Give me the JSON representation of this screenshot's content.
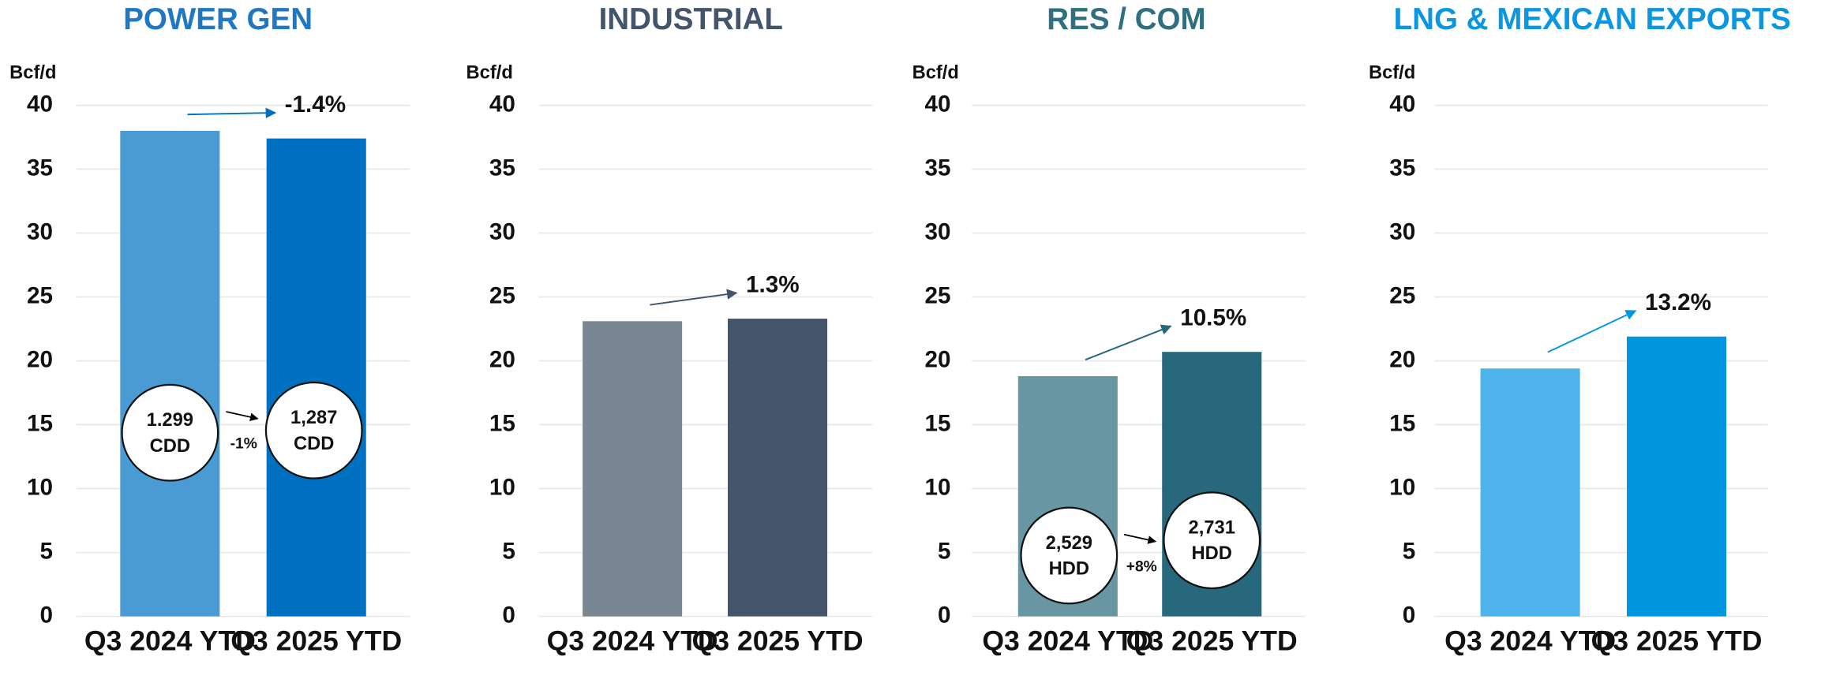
{
  "chart_data": [
    {
      "type": "bar",
      "title": "POWER GEN",
      "y_label": "Bcf/d",
      "categories": [
        "Q3 2024 YTD",
        "Q3 2025 YTD"
      ],
      "values": [
        38.0,
        37.4
      ],
      "colors": [
        "#4a9bd4",
        "#0070c0"
      ],
      "title_color": "#1f78c1",
      "ylim": [
        0,
        40
      ],
      "yticks": [
        0,
        5,
        10,
        15,
        20,
        25,
        30,
        35,
        40
      ],
      "grid": true,
      "annotation": "-1.4%",
      "circles": [
        {
          "value": "1.299",
          "unit": "CDD"
        },
        {
          "value": "1,287",
          "unit": "CDD"
        }
      ],
      "circle_change": "-1%"
    },
    {
      "type": "bar",
      "title": "INDUSTRIAL",
      "y_label": "Bcf/d",
      "categories": [
        "Q3 2024 YTD",
        "Q3 2025 YTD"
      ],
      "values": [
        23.1,
        23.3
      ],
      "colors": [
        "#7a8793",
        "#44546a"
      ],
      "title_color": "#44546a",
      "ylim": [
        0,
        40
      ],
      "yticks": [
        0,
        5,
        10,
        15,
        20,
        25,
        30,
        35,
        40
      ],
      "grid": true,
      "annotation": "1.3%"
    },
    {
      "type": "bar",
      "title": "RES / COM",
      "y_label": "Bcf/d",
      "categories": [
        "Q3 2024 YTD",
        "Q3 2025 YTD"
      ],
      "values": [
        18.8,
        20.7
      ],
      "colors": [
        "#6896a3",
        "#27687c"
      ],
      "title_color": "#2f6f80",
      "ylim": [
        0,
        40
      ],
      "yticks": [
        0,
        5,
        10,
        15,
        20,
        25,
        30,
        35,
        40
      ],
      "grid": true,
      "annotation": "10.5%",
      "circles": [
        {
          "value": "2,529",
          "unit": "HDD"
        },
        {
          "value": "2,731",
          "unit": "HDD"
        }
      ],
      "circle_change": "+8%"
    },
    {
      "type": "bar",
      "title": "LNG & MEXICAN EXPORTS",
      "y_label": "Bcf/d",
      "categories": [
        "Q3 2024 YTD",
        "Q3 2025 YTD"
      ],
      "values": [
        19.4,
        21.9
      ],
      "colors": [
        "#4db3ea",
        "#0096e0"
      ],
      "title_color": "#0b96e0",
      "ylim": [
        0,
        40
      ],
      "yticks": [
        0,
        5,
        10,
        15,
        20,
        25,
        30,
        35,
        40
      ],
      "grid": true,
      "annotation": "13.2%"
    }
  ]
}
